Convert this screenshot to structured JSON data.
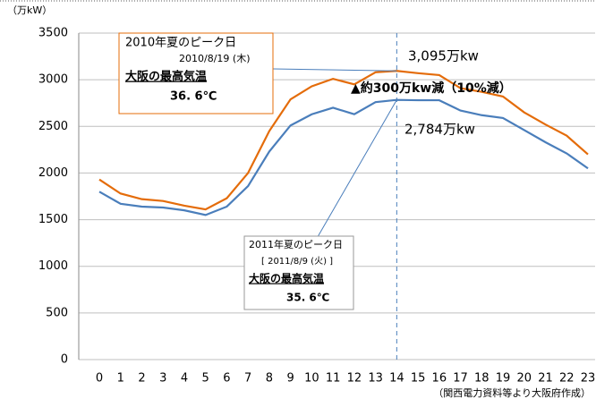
{
  "chart_data": {
    "type": "line",
    "y_unit_label": "（万kW）",
    "source": "（関西電力資料等より大阪府作成）",
    "categories": [
      "0",
      "1",
      "2",
      "3",
      "4",
      "5",
      "6",
      "7",
      "8",
      "9",
      "10",
      "11",
      "12",
      "13",
      "14",
      "15",
      "16",
      "17",
      "18",
      "19",
      "20",
      "21",
      "22",
      "23"
    ],
    "series": [
      {
        "color": "#e46c0a",
        "values": [
          1930,
          1780,
          1720,
          1700,
          1650,
          1610,
          1730,
          2000,
          2450,
          2790,
          2930,
          3010,
          2950,
          3080,
          3095,
          3070,
          3050,
          2910,
          2870,
          2820,
          2650,
          2520,
          2400,
          2200
        ]
      },
      {
        "color": "#4a7ebb",
        "values": [
          1800,
          1670,
          1640,
          1630,
          1600,
          1550,
          1640,
          1860,
          2230,
          2510,
          2630,
          2700,
          2630,
          2760,
          2784,
          2780,
          2780,
          2670,
          2620,
          2590,
          2460,
          2330,
          2210,
          2050
        ]
      }
    ],
    "ylim": [
      0,
      3500
    ],
    "yticks": [
      0,
      500,
      1000,
      1500,
      2000,
      2500,
      3000,
      3500
    ],
    "grid": true,
    "annotations": {
      "peak2010": {
        "title": "2010年夏のピーク日",
        "date": "2010/8/19 (木)",
        "heading": "大阪の最高気温",
        "temp": "36. 6℃"
      },
      "peak2011": {
        "title": "2011年夏のピーク日",
        "date": "[ 2011/8/9 (火) ]",
        "heading": "大阪の最高気温",
        "temp": "35. 6℃"
      },
      "label2010": "3,095万kw",
      "reduction": "▲約300万kw減（10%減）",
      "label2011": "2,784万kw"
    }
  }
}
